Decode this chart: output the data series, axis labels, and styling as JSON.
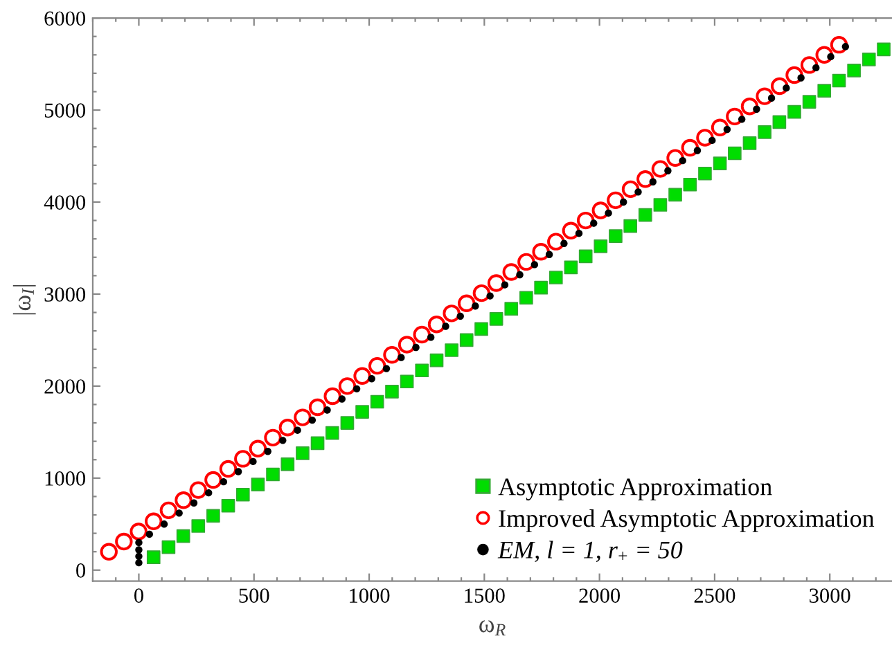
{
  "chart_data": {
    "type": "scatter",
    "xlabel": "ω$_{R}$",
    "ylabel": "|ω$_{I}$|",
    "xlim": [
      -200,
      3270
    ],
    "ylim": [
      -120,
      6000
    ],
    "xticks": [
      {
        "value": -200,
        "label": null
      },
      {
        "value": -100,
        "label": null
      },
      0,
      {
        "value": 100,
        "label": null
      },
      {
        "value": 200,
        "label": null
      },
      {
        "value": 300,
        "label": null
      },
      {
        "value": 400,
        "label": null
      },
      500,
      {
        "value": 600,
        "label": null
      },
      {
        "value": 700,
        "label": null
      },
      {
        "value": 800,
        "label": null
      },
      {
        "value": 900,
        "label": null
      },
      1000,
      {
        "value": 1100,
        "label": null
      },
      {
        "value": 1200,
        "label": null
      },
      {
        "value": 1300,
        "label": null
      },
      {
        "value": 1400,
        "label": null
      },
      1500,
      {
        "value": 1600,
        "label": null
      },
      {
        "value": 1700,
        "label": null
      },
      {
        "value": 1800,
        "label": null
      },
      {
        "value": 1900,
        "label": null
      },
      2000,
      {
        "value": 2100,
        "label": null
      },
      {
        "value": 2200,
        "label": null
      },
      {
        "value": 2300,
        "label": null
      },
      {
        "value": 2400,
        "label": null
      },
      2500,
      {
        "value": 2600,
        "label": null
      },
      {
        "value": 2700,
        "label": null
      },
      {
        "value": 2800,
        "label": null
      },
      {
        "value": 2900,
        "label": null
      },
      3000,
      {
        "value": 3100,
        "label": null
      },
      {
        "value": 3200,
        "label": null
      }
    ],
    "yticks": [
      0,
      {
        "value": 200,
        "label": null
      },
      {
        "value": 400,
        "label": null
      },
      {
        "value": 600,
        "label": null
      },
      {
        "value": 800,
        "label": null
      },
      1000,
      {
        "value": 1200,
        "label": null
      },
      {
        "value": 1400,
        "label": null
      },
      {
        "value": 1600,
        "label": null
      },
      {
        "value": 1800,
        "label": null
      },
      2000,
      {
        "value": 2200,
        "label": null
      },
      {
        "value": 2400,
        "label": null
      },
      {
        "value": 2600,
        "label": null
      },
      {
        "value": 2800,
        "label": null
      },
      3000,
      {
        "value": 3200,
        "label": null
      },
      {
        "value": 3400,
        "label": null
      },
      {
        "value": 3600,
        "label": null
      },
      {
        "value": 3800,
        "label": null
      },
      4000,
      {
        "value": 4200,
        "label": null
      },
      {
        "value": 4400,
        "label": null
      },
      {
        "value": 4600,
        "label": null
      },
      {
        "value": 4800,
        "label": null
      },
      5000,
      {
        "value": 5200,
        "label": null
      },
      {
        "value": 5400,
        "label": null
      },
      {
        "value": 5600,
        "label": null
      },
      {
        "value": 5800,
        "label": null
      },
      6000
    ],
    "grid": false,
    "legend": "bottom right",
    "series": [
      {
        "name": "Asymptotic Approximation",
        "color": "#00dd00",
        "marker": "square",
        "x": [
          64,
          129,
          193,
          258,
          323,
          388,
          452,
          517,
          582,
          646,
          711,
          776,
          840,
          905,
          970,
          1035,
          1099,
          1164,
          1229,
          1293,
          1358,
          1423,
          1487,
          1552,
          1617,
          1682,
          1746,
          1811,
          1876,
          1940,
          2005,
          2070,
          2134,
          2199,
          2264,
          2329,
          2393,
          2458,
          2523,
          2587,
          2652,
          2717,
          2781,
          2846,
          2911,
          2976,
          3040,
          3105,
          3170,
          3234
        ],
        "values": [
          140,
          250,
          370,
          480,
          590,
          700,
          820,
          930,
          1040,
          1150,
          1270,
          1380,
          1490,
          1600,
          1720,
          1830,
          1940,
          2050,
          2170,
          2280,
          2390,
          2500,
          2620,
          2730,
          2840,
          2960,
          3070,
          3180,
          3290,
          3410,
          3520,
          3630,
          3740,
          3860,
          3970,
          4080,
          4190,
          4310,
          4420,
          4530,
          4640,
          4760,
          4870,
          4980,
          5090,
          5210,
          5320,
          5430,
          5550,
          5660
        ]
      },
      {
        "name": "Improved Asymptotic Approximation",
        "color": "#ff0000",
        "marker": "circle",
        "x": [
          -130,
          -65,
          -1,
          64,
          129,
          194,
          258,
          323,
          388,
          452,
          517,
          582,
          646,
          711,
          776,
          841,
          905,
          970,
          1035,
          1099,
          1164,
          1229,
          1293,
          1358,
          1423,
          1488,
          1552,
          1617,
          1682,
          1746,
          1811,
          1876,
          1940,
          2005,
          2070,
          2135,
          2199,
          2264,
          2329,
          2393,
          2458,
          2523,
          2587,
          2652,
          2717,
          2782,
          2846,
          2911,
          2976,
          3040
        ],
        "values": [
          200,
          310,
          420,
          530,
          650,
          760,
          870,
          980,
          1100,
          1210,
          1320,
          1440,
          1550,
          1660,
          1770,
          1890,
          2000,
          2110,
          2220,
          2340,
          2450,
          2560,
          2670,
          2790,
          2900,
          3010,
          3120,
          3240,
          3350,
          3460,
          3570,
          3690,
          3800,
          3910,
          4020,
          4140,
          4250,
          4360,
          4480,
          4590,
          4700,
          4810,
          4930,
          5040,
          5150,
          5260,
          5380,
          5490,
          5600,
          5710
        ]
      },
      {
        "name": "EM, l = 1, r$_{+}$ = 50",
        "color": "#000000",
        "marker": "circle",
        "x": [
          0,
          0,
          0,
          0,
          46,
          110,
          175,
          239,
          303,
          368,
          432,
          496,
          560,
          625,
          689,
          753,
          818,
          882,
          946,
          1011,
          1075,
          1139,
          1203,
          1268,
          1332,
          1396,
          1461,
          1525,
          1589,
          1654,
          1718,
          1782,
          1846,
          1911,
          1975,
          2039,
          2104,
          2168,
          2232,
          2297,
          2361,
          2425,
          2489,
          2554,
          2618,
          2682,
          2747,
          2811,
          2875,
          2940,
          3004,
          3068
        ],
        "values": [
          80,
          150,
          220,
          300,
          390,
          500,
          620,
          730,
          840,
          960,
          1070,
          1180,
          1290,
          1410,
          1520,
          1630,
          1740,
          1860,
          1970,
          2080,
          2190,
          2310,
          2420,
          2530,
          2650,
          2760,
          2870,
          2980,
          3100,
          3210,
          3320,
          3430,
          3550,
          3660,
          3770,
          3880,
          4000,
          4110,
          4220,
          4340,
          4450,
          4560,
          4670,
          4790,
          4900,
          5010,
          5130,
          5240,
          5350,
          5460,
          5580,
          5690
        ]
      }
    ]
  }
}
